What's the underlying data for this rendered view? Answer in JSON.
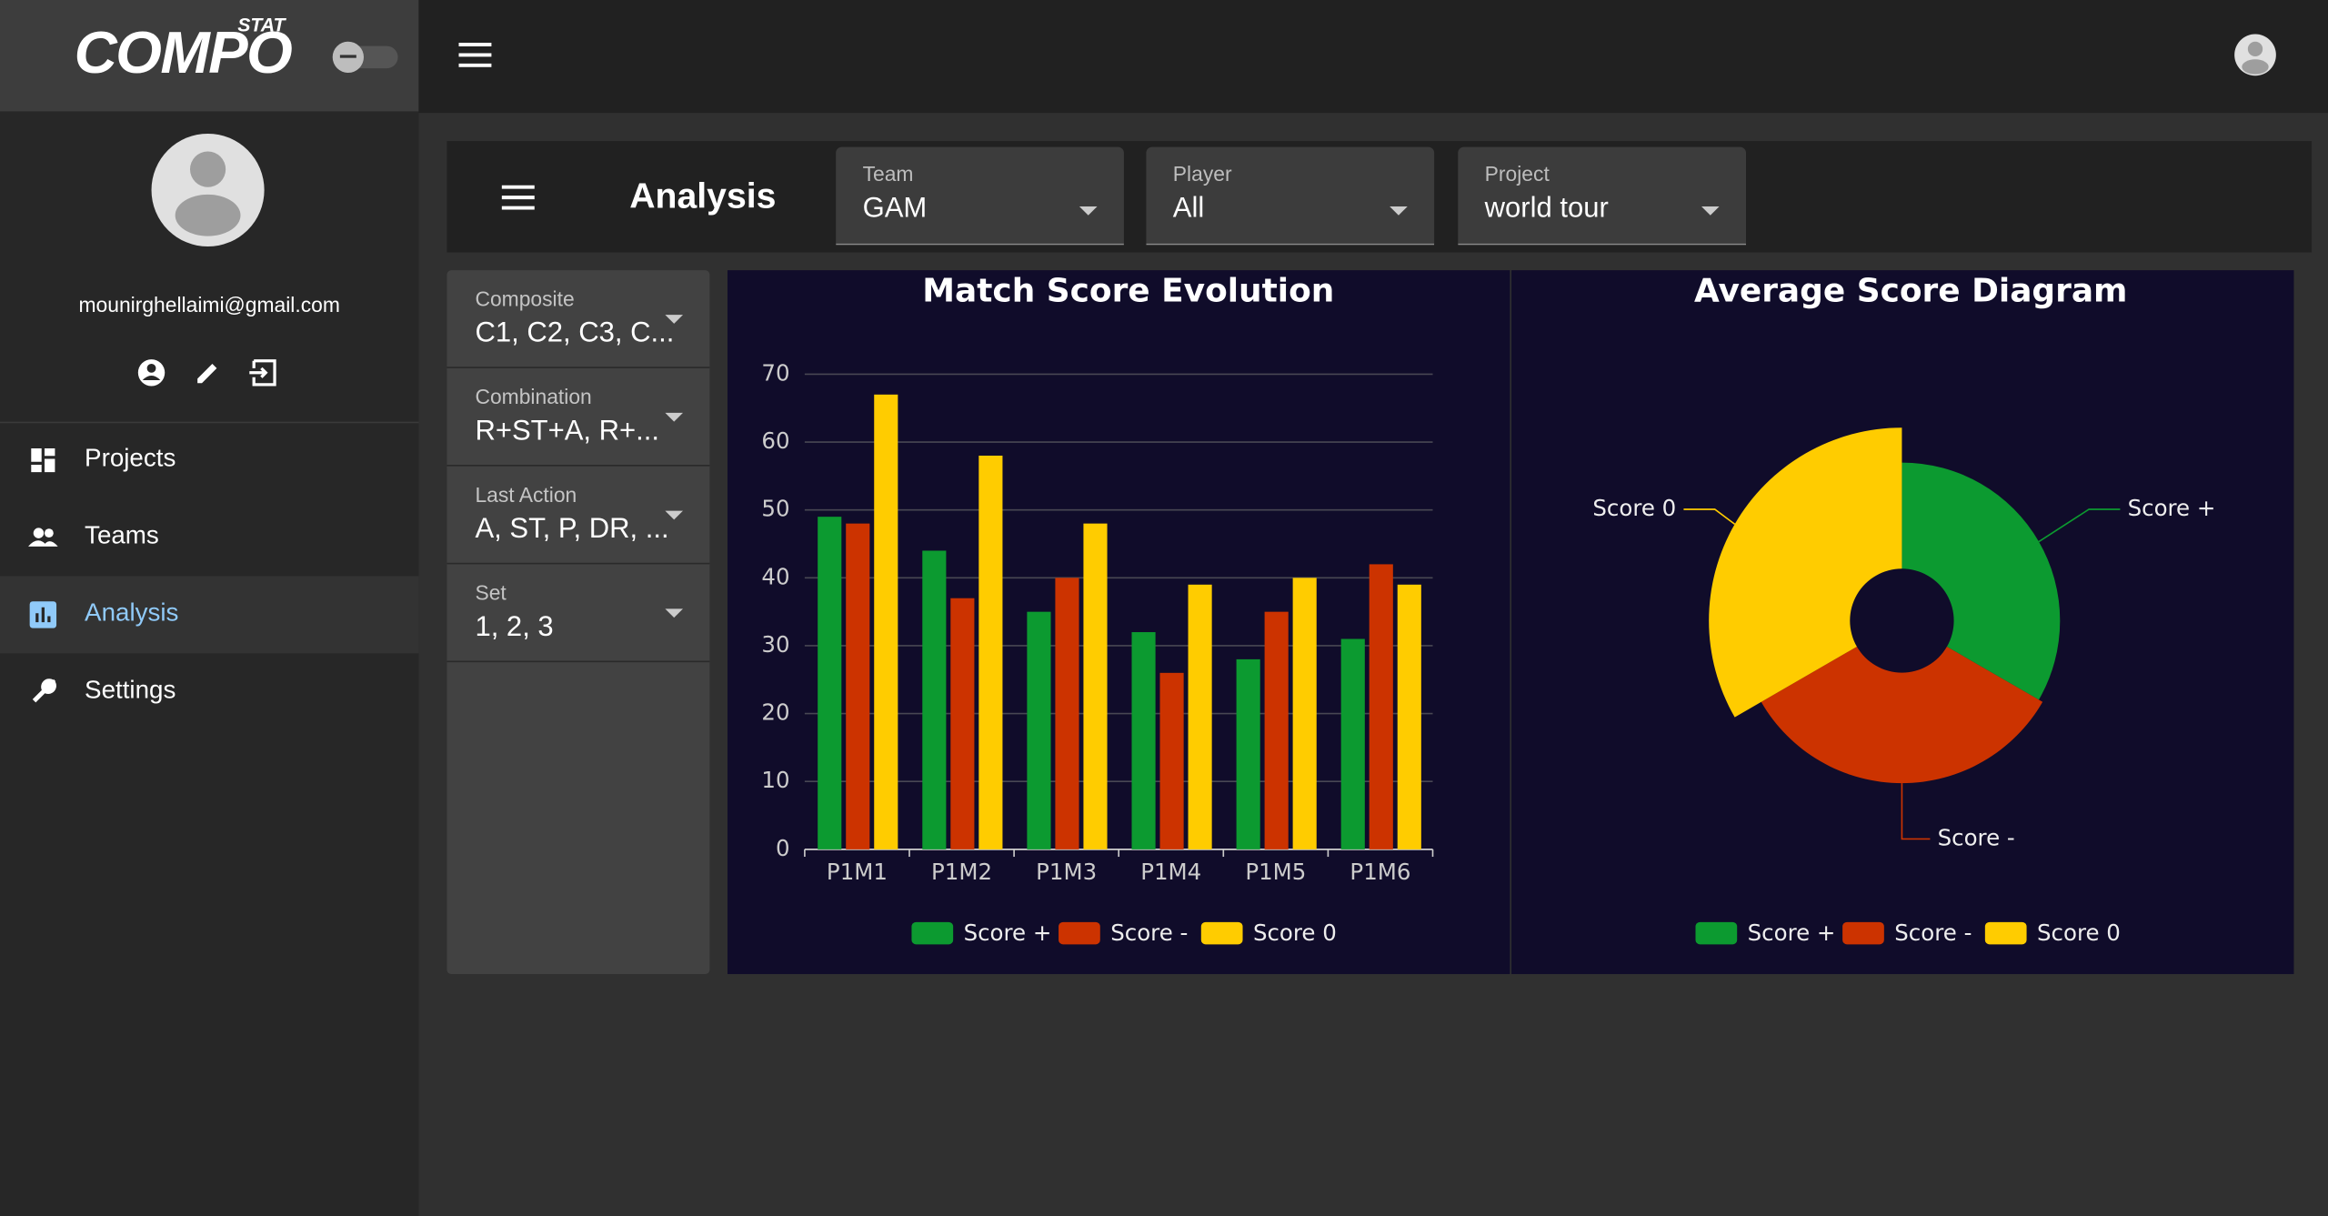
{
  "sidebar": {
    "logo": "COMPO",
    "logo_tag": "STAT",
    "email": "mounirghellaimi@gmail.com",
    "nav": [
      "Projects",
      "Teams",
      "Analysis",
      "Settings"
    ],
    "active_index": 2
  },
  "header": {
    "title": "Analysis",
    "selects": [
      {
        "label": "Team",
        "value": "GAM"
      },
      {
        "label": "Player",
        "value": "All"
      },
      {
        "label": "Project",
        "value": "world tour"
      }
    ]
  },
  "filters": [
    {
      "label": "Composite",
      "value": "C1, C2, C3, C..."
    },
    {
      "label": "Combination",
      "value": "R+ST+A, R+..."
    },
    {
      "label": "Last Action",
      "value": "A, ST, P, DR, ..."
    },
    {
      "label": "Set",
      "value": "1, 2, 3"
    }
  ],
  "chart_data": [
    {
      "type": "bar",
      "title": "Match Score Evolution",
      "categories": [
        "P1M1",
        "P1M2",
        "P1M3",
        "P1M4",
        "P1M5",
        "P1M6"
      ],
      "series": [
        {
          "name": "Score +",
          "color": "#0c9a30",
          "values": [
            49,
            44,
            35,
            32,
            28,
            31
          ]
        },
        {
          "name": "Score -",
          "color": "#cc3300",
          "values": [
            48,
            37,
            40,
            26,
            35,
            42
          ]
        },
        {
          "name": "Score 0",
          "color": "#ffcc00",
          "values": [
            67,
            58,
            48,
            39,
            40,
            39
          ]
        }
      ],
      "ylim": [
        0,
        70
      ],
      "yticks": [
        0,
        10,
        20,
        30,
        40,
        50,
        60,
        70
      ],
      "grid": true,
      "legend": "bottom"
    },
    {
      "type": "pie",
      "title": "Average Score Diagram",
      "rose": "area",
      "categories": [
        "Score +",
        "Score -",
        "Score 0"
      ],
      "values": [
        36.5,
        38,
        48.5
      ],
      "colors": [
        "#0c9a30",
        "#cc3300",
        "#ffcc00"
      ],
      "legend": "bottom"
    }
  ]
}
